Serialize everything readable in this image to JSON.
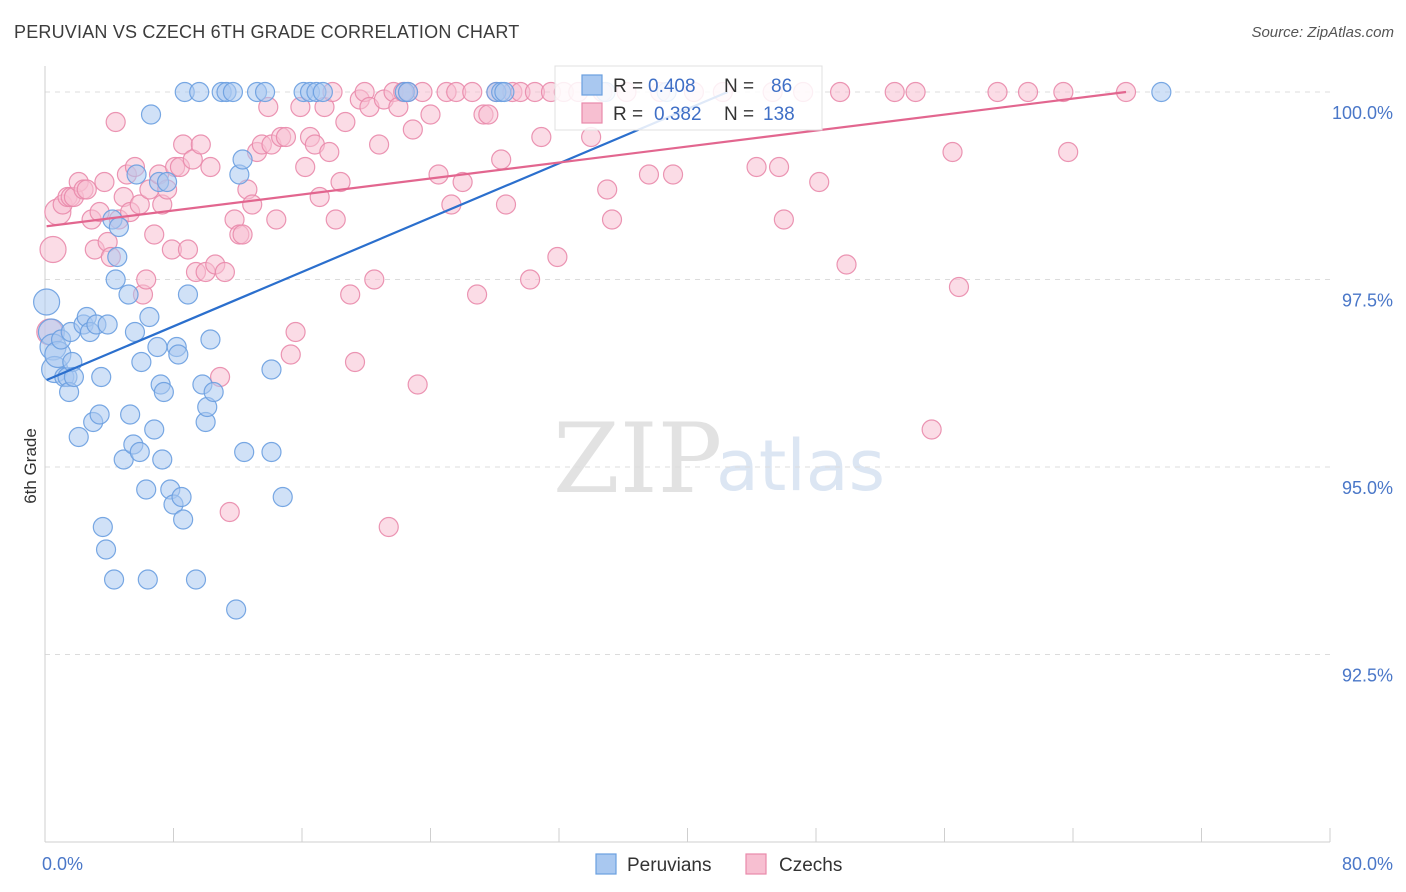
{
  "title": "PERUVIAN VS CZECH 6TH GRADE CORRELATION CHART",
  "source": "Source: ZipAtlas.com",
  "chart_data": {
    "type": "scatter",
    "xlabel": "",
    "ylabel": "6th Grade",
    "xlim": [
      0,
      80
    ],
    "ylim": [
      90.0,
      100.4
    ],
    "x_tick_labels": [
      "0.0%",
      "80.0%"
    ],
    "y_ticks": [
      92.5,
      95.0,
      97.5,
      100.0
    ],
    "y_tick_labels": [
      "92.5%",
      "95.0%",
      "97.5%",
      "100.0%"
    ],
    "grid": "horizontal dashed",
    "legend_position": "top-center",
    "watermark": {
      "zip": "ZIP",
      "atlas": "atlas"
    },
    "legend": {
      "r_label": "R =",
      "n_label": "N =",
      "entries": [
        {
          "r": "0.408",
          "n": "86"
        },
        {
          "r": "0.382",
          "n": "138"
        }
      ]
    },
    "series": [
      {
        "name": "Peruvians",
        "color": "#6a9fe0",
        "fill": "#a9c8f0",
        "line_color": "#2b6fcd",
        "trend": {
          "x": [
            0.1,
            42.5
          ],
          "y": [
            96.16,
            100.0
          ]
        },
        "points": [
          [
            0.1,
            97.2
          ],
          [
            0.4,
            96.8
          ],
          [
            0.5,
            96.6
          ],
          [
            0.6,
            96.3
          ],
          [
            0.8,
            96.5
          ],
          [
            1.0,
            96.7
          ],
          [
            1.2,
            96.2
          ],
          [
            1.4,
            96.2
          ],
          [
            1.5,
            96.0
          ],
          [
            1.6,
            96.8
          ],
          [
            1.7,
            96.4
          ],
          [
            1.8,
            96.2
          ],
          [
            2.1,
            95.4
          ],
          [
            2.4,
            96.9
          ],
          [
            2.6,
            97.0
          ],
          [
            2.8,
            96.8
          ],
          [
            3.0,
            95.6
          ],
          [
            3.2,
            96.9
          ],
          [
            3.4,
            95.7
          ],
          [
            3.5,
            96.2
          ],
          [
            3.6,
            94.2
          ],
          [
            3.8,
            93.9
          ],
          [
            3.9,
            96.9
          ],
          [
            4.2,
            98.3
          ],
          [
            4.3,
            93.5
          ],
          [
            4.4,
            97.5
          ],
          [
            4.5,
            97.8
          ],
          [
            4.6,
            98.2
          ],
          [
            4.9,
            95.1
          ],
          [
            5.2,
            97.3
          ],
          [
            5.3,
            95.7
          ],
          [
            5.5,
            95.3
          ],
          [
            5.6,
            96.8
          ],
          [
            5.7,
            98.9
          ],
          [
            5.9,
            95.2
          ],
          [
            6.0,
            96.4
          ],
          [
            6.3,
            94.7
          ],
          [
            6.4,
            93.5
          ],
          [
            6.5,
            97.0
          ],
          [
            6.6,
            99.7
          ],
          [
            6.8,
            95.5
          ],
          [
            7.0,
            96.6
          ],
          [
            7.1,
            98.8
          ],
          [
            7.2,
            96.1
          ],
          [
            7.3,
            95.1
          ],
          [
            7.4,
            96.0
          ],
          [
            7.6,
            98.8
          ],
          [
            7.8,
            94.7
          ],
          [
            8.0,
            94.5
          ],
          [
            8.2,
            96.6
          ],
          [
            8.3,
            96.5
          ],
          [
            8.5,
            94.6
          ],
          [
            8.6,
            94.3
          ],
          [
            8.7,
            100.0
          ],
          [
            8.9,
            97.3
          ],
          [
            9.4,
            93.5
          ],
          [
            9.6,
            100.0
          ],
          [
            9.8,
            96.1
          ],
          [
            10.0,
            95.6
          ],
          [
            10.1,
            95.8
          ],
          [
            10.3,
            96.7
          ],
          [
            10.5,
            96.0
          ],
          [
            11.0,
            100.0
          ],
          [
            11.3,
            100.0
          ],
          [
            11.7,
            100.0
          ],
          [
            11.9,
            93.1
          ],
          [
            12.1,
            98.9
          ],
          [
            12.3,
            99.1
          ],
          [
            12.4,
            95.2
          ],
          [
            13.2,
            100.0
          ],
          [
            13.7,
            100.0
          ],
          [
            14.1,
            96.3
          ],
          [
            14.1,
            95.2
          ],
          [
            14.8,
            94.6
          ],
          [
            16.1,
            100.0
          ],
          [
            16.5,
            100.0
          ],
          [
            16.9,
            100.0
          ],
          [
            17.3,
            100.0
          ],
          [
            22.4,
            100.0
          ],
          [
            22.6,
            100.0
          ],
          [
            28.1,
            100.0
          ],
          [
            28.4,
            100.0
          ],
          [
            28.6,
            100.0
          ],
          [
            34.9,
            100.0
          ],
          [
            38.7,
            100.0
          ],
          [
            69.5,
            100.0
          ]
        ]
      },
      {
        "name": "Czechs",
        "color": "#e98aab",
        "fill": "#f7bfd1",
        "line_color": "#e2668f",
        "trend": {
          "x": [
            0.1,
            67.3
          ],
          "y": [
            98.21,
            100.0
          ]
        },
        "points": [
          [
            0.3,
            96.8
          ],
          [
            0.5,
            97.9
          ],
          [
            0.8,
            98.4
          ],
          [
            1.1,
            98.5
          ],
          [
            1.4,
            98.6
          ],
          [
            1.6,
            98.6
          ],
          [
            1.8,
            98.6
          ],
          [
            2.1,
            98.8
          ],
          [
            2.4,
            98.7
          ],
          [
            2.6,
            98.7
          ],
          [
            2.9,
            98.3
          ],
          [
            3.1,
            97.9
          ],
          [
            3.4,
            98.4
          ],
          [
            3.7,
            98.8
          ],
          [
            3.9,
            98.0
          ],
          [
            4.1,
            97.8
          ],
          [
            4.4,
            99.6
          ],
          [
            4.6,
            98.3
          ],
          [
            4.9,
            98.6
          ],
          [
            5.1,
            98.9
          ],
          [
            5.3,
            98.4
          ],
          [
            5.6,
            99.0
          ],
          [
            5.9,
            98.5
          ],
          [
            6.1,
            97.3
          ],
          [
            6.3,
            97.5
          ],
          [
            6.5,
            98.7
          ],
          [
            6.8,
            98.1
          ],
          [
            7.1,
            98.9
          ],
          [
            7.3,
            98.5
          ],
          [
            7.6,
            98.7
          ],
          [
            7.9,
            97.9
          ],
          [
            8.1,
            99.0
          ],
          [
            8.4,
            99.0
          ],
          [
            8.6,
            99.3
          ],
          [
            8.9,
            97.9
          ],
          [
            9.2,
            99.1
          ],
          [
            9.4,
            97.6
          ],
          [
            9.7,
            99.3
          ],
          [
            10.0,
            97.6
          ],
          [
            10.3,
            99.0
          ],
          [
            10.6,
            97.7
          ],
          [
            10.9,
            96.2
          ],
          [
            11.2,
            97.6
          ],
          [
            11.5,
            94.4
          ],
          [
            11.8,
            98.3
          ],
          [
            12.1,
            98.1
          ],
          [
            12.3,
            98.1
          ],
          [
            12.6,
            98.7
          ],
          [
            12.9,
            98.5
          ],
          [
            13.2,
            99.2
          ],
          [
            13.5,
            99.3
          ],
          [
            13.9,
            99.8
          ],
          [
            14.1,
            99.3
          ],
          [
            14.4,
            98.3
          ],
          [
            14.7,
            99.4
          ],
          [
            15.0,
            99.4
          ],
          [
            15.3,
            96.5
          ],
          [
            15.6,
            96.8
          ],
          [
            15.9,
            99.8
          ],
          [
            16.2,
            99.0
          ],
          [
            16.5,
            99.4
          ],
          [
            16.8,
            99.3
          ],
          [
            17.1,
            98.6
          ],
          [
            17.4,
            99.8
          ],
          [
            17.7,
            99.2
          ],
          [
            17.9,
            100.0
          ],
          [
            18.1,
            98.3
          ],
          [
            18.4,
            98.8
          ],
          [
            18.7,
            99.6
          ],
          [
            19.0,
            97.3
          ],
          [
            19.3,
            96.4
          ],
          [
            19.6,
            99.9
          ],
          [
            19.9,
            100.0
          ],
          [
            20.2,
            99.8
          ],
          [
            20.5,
            97.5
          ],
          [
            20.8,
            99.3
          ],
          [
            21.1,
            99.9
          ],
          [
            21.4,
            94.2
          ],
          [
            21.7,
            100.0
          ],
          [
            22.0,
            99.8
          ],
          [
            22.3,
            100.0
          ],
          [
            22.6,
            100.0
          ],
          [
            22.9,
            99.5
          ],
          [
            23.2,
            96.1
          ],
          [
            23.5,
            100.0
          ],
          [
            24.0,
            99.7
          ],
          [
            24.5,
            98.9
          ],
          [
            25.0,
            100.0
          ],
          [
            25.3,
            98.5
          ],
          [
            25.6,
            100.0
          ],
          [
            26.0,
            98.8
          ],
          [
            26.6,
            100.0
          ],
          [
            26.9,
            97.3
          ],
          [
            27.3,
            99.7
          ],
          [
            27.6,
            99.7
          ],
          [
            28.1,
            100.0
          ],
          [
            28.4,
            99.1
          ],
          [
            28.7,
            98.5
          ],
          [
            29.1,
            100.0
          ],
          [
            29.6,
            100.0
          ],
          [
            30.2,
            97.5
          ],
          [
            30.5,
            100.0
          ],
          [
            30.9,
            99.4
          ],
          [
            31.5,
            100.0
          ],
          [
            31.9,
            97.8
          ],
          [
            32.3,
            100.0
          ],
          [
            33.2,
            100.0
          ],
          [
            34.0,
            99.4
          ],
          [
            34.7,
            100.0
          ],
          [
            35.0,
            98.7
          ],
          [
            35.3,
            98.3
          ],
          [
            36.2,
            100.0
          ],
          [
            37.6,
            98.9
          ],
          [
            38.3,
            100.0
          ],
          [
            39.1,
            98.9
          ],
          [
            40.4,
            100.0
          ],
          [
            42.2,
            100.0
          ],
          [
            44.3,
            99.0
          ],
          [
            45.3,
            100.0
          ],
          [
            45.7,
            99.0
          ],
          [
            46.0,
            98.3
          ],
          [
            47.2,
            100.0
          ],
          [
            48.2,
            98.8
          ],
          [
            49.5,
            100.0
          ],
          [
            49.9,
            97.7
          ],
          [
            52.9,
            100.0
          ],
          [
            54.2,
            100.0
          ],
          [
            55.2,
            95.5
          ],
          [
            56.5,
            99.2
          ],
          [
            56.9,
            97.4
          ],
          [
            59.3,
            100.0
          ],
          [
            61.2,
            100.0
          ],
          [
            63.4,
            100.0
          ],
          [
            63.7,
            99.2
          ],
          [
            67.3,
            100.0
          ]
        ]
      }
    ]
  },
  "bottom_legend": [
    "Peruvians",
    "Czechs"
  ]
}
